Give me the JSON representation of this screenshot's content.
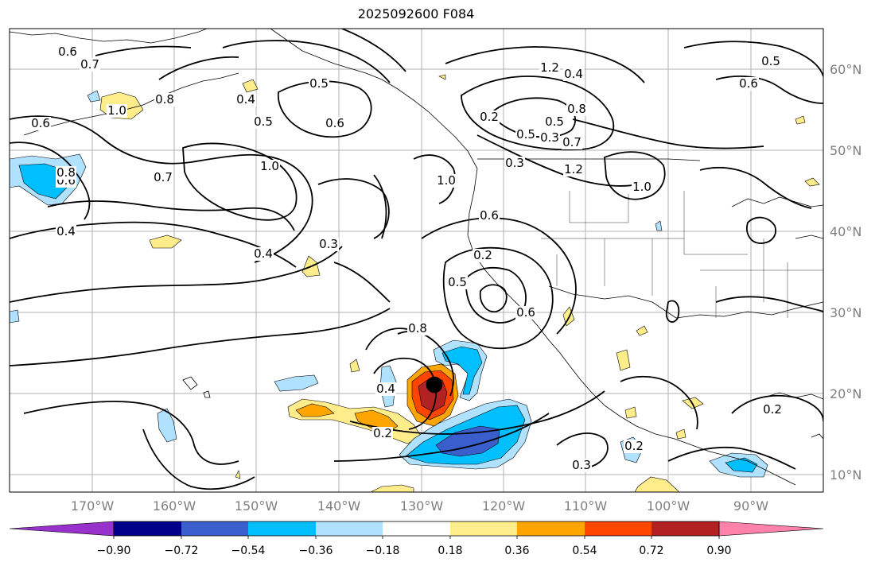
{
  "title": "2025092600 F084",
  "latitude_labels": [
    "60°N",
    "50°N",
    "40°N",
    "30°N",
    "20°N",
    "10°N"
  ],
  "longitude_labels": [
    "170°W",
    "160°W",
    "150°W",
    "140°W",
    "130°W",
    "120°W",
    "110°W",
    "100°W",
    "90°W"
  ],
  "colorbar": {
    "tick_labels": [
      "−0.90",
      "−0.72",
      "−0.54",
      "−0.36",
      "−0.18",
      "0.18",
      "0.36",
      "0.54",
      "0.72",
      "0.90"
    ],
    "colors": [
      "#9932cc",
      "#00008b",
      "#3a5fcd",
      "#00bfff",
      "#b0e2ff",
      "#ffffff",
      "#ffec8b",
      "#ffa500",
      "#ff4500",
      "#b22222",
      "#ff82ab"
    ]
  },
  "contour_labels": [
    "0.6",
    "0.7",
    "0.4",
    "0.5",
    "0.5",
    "0.6",
    "1.0",
    "0.7",
    "0.4",
    "0.3",
    "0.4",
    "0.8",
    "1.0",
    "0.6",
    "0.8",
    "0.6",
    "1.2",
    "0.4",
    "0.2",
    "0.5",
    "0.3",
    "0.5",
    "0.7",
    "1.2",
    "1.0",
    "0.6",
    "1.0",
    "0.2",
    "0.5",
    "0.6",
    "0.8",
    "0.4",
    "0.2",
    "0.3",
    "0.8",
    "0.6",
    "0.5",
    "0.2",
    "0.2",
    "0.3"
  ]
}
